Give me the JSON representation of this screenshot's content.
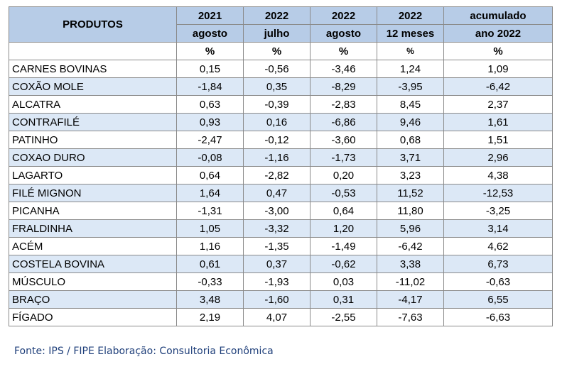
{
  "header": {
    "products_label": "PRODUTOS",
    "columns": [
      {
        "year": "2021",
        "period": "agosto",
        "unit": "%"
      },
      {
        "year": "2022",
        "period": "julho",
        "unit": "%"
      },
      {
        "year": "2022",
        "period": "agosto",
        "unit": "%"
      },
      {
        "year": "2022",
        "period": "12 meses",
        "unit": "%"
      },
      {
        "year": "acumulado",
        "period": "ano 2022",
        "unit": "%"
      }
    ]
  },
  "rows": [
    {
      "name": "CARNES BOVINAS",
      "values": [
        "0,15",
        "-0,56",
        "-3,46",
        "1,24",
        "1,09"
      ]
    },
    {
      "name": "COXÃO MOLE",
      "values": [
        "-1,84",
        "0,35",
        "-8,29",
        "-3,95",
        "-6,42"
      ]
    },
    {
      "name": "ALCATRA",
      "values": [
        "0,63",
        "-0,39",
        "-2,83",
        "8,45",
        "2,37"
      ]
    },
    {
      "name": "CONTRAFILÉ",
      "values": [
        "0,93",
        "0,16",
        "-6,86",
        "9,46",
        "1,61"
      ]
    },
    {
      "name": "PATINHO",
      "values": [
        "-2,47",
        "-0,12",
        "-3,60",
        "0,68",
        "1,51"
      ]
    },
    {
      "name": "COXAO DURO",
      "values": [
        "-0,08",
        "-1,16",
        "-1,73",
        "3,71",
        "2,96"
      ]
    },
    {
      "name": "LAGARTO",
      "values": [
        "0,64",
        "-2,82",
        "0,20",
        "3,23",
        "4,38"
      ]
    },
    {
      "name": "FILÉ MIGNON",
      "values": [
        "1,64",
        "0,47",
        "-0,53",
        "11,52",
        "-12,53"
      ]
    },
    {
      "name": "PICANHA",
      "values": [
        "-1,31",
        "-3,00",
        "0,64",
        "11,80",
        "-3,25"
      ]
    },
    {
      "name": "FRALDINHA",
      "values": [
        "1,05",
        "-3,32",
        "1,20",
        "5,96",
        "3,14"
      ]
    },
    {
      "name": "ACÉM",
      "values": [
        "1,16",
        "-1,35",
        "-1,49",
        "-6,42",
        "4,62"
      ]
    },
    {
      "name": "COSTELA BOVINA",
      "values": [
        "0,61",
        "0,37",
        "-0,62",
        "3,38",
        "6,73"
      ]
    },
    {
      "name": "MÚSCULO",
      "values": [
        "-0,33",
        "-1,93",
        "0,03",
        "-11,02",
        "-0,63"
      ]
    },
    {
      "name": "BRAÇO",
      "values": [
        "3,48",
        "-1,60",
        "0,31",
        "-4,17",
        "6,55"
      ]
    },
    {
      "name": "FÍGADO",
      "values": [
        "2,19",
        "4,07",
        "-2,55",
        "-7,63",
        "-6,63"
      ]
    }
  ],
  "footer": {
    "source": "Fonte: IPS / FIPE  Elaboração: Consultoria Econômica"
  },
  "colors": {
    "header_bg": "#b7cce7",
    "alt_row_bg": "#dce8f6",
    "source_text": "#1f3f7a"
  }
}
